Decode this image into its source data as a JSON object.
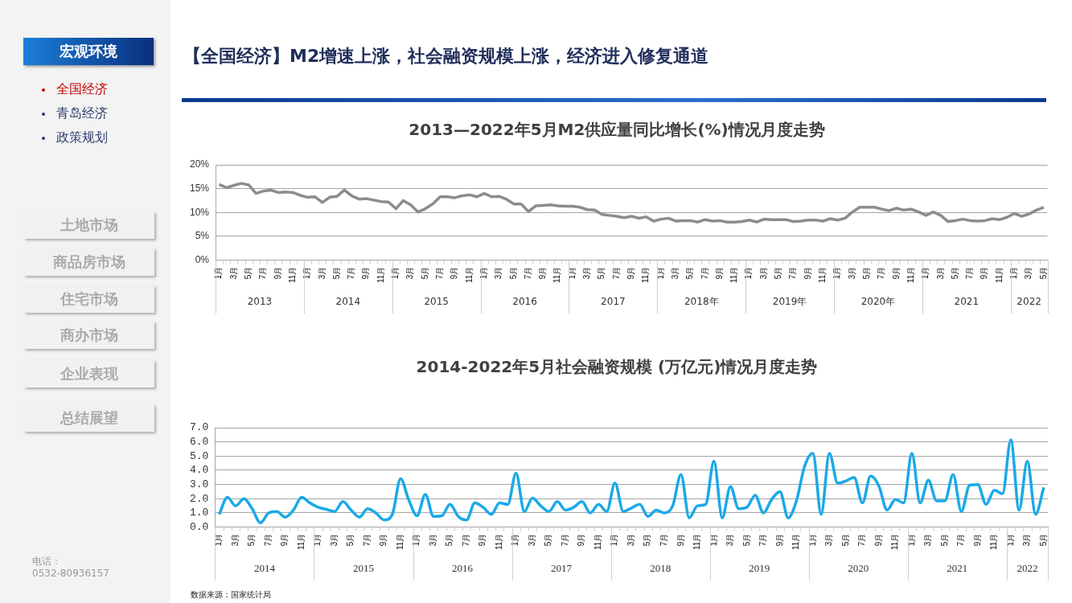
{
  "chart_data": [
    {
      "type": "other",
      "title": "【全国经济】M2增速上涨，社会融资规模上涨，经济进入修复通道",
      "annotations": [
        "宏观环境",
        "全国经济",
        "青岛经济",
        "政策规划",
        "土地市场",
        "商品房市场",
        "住宅市场",
        "商办市场",
        "企业表现",
        "总结展望",
        "电话：",
        "0532-80936157"
      ]
    },
    {
      "type": "line",
      "title": "2013—2022年5月M2供应量同比增长(%)情况月度走势",
      "categories": [
        "1月",
        null,
        "3月",
        null,
        "5月",
        null,
        "7月",
        null,
        "9月",
        null,
        "11月",
        null,
        "1月",
        null,
        "3月",
        null,
        "5月",
        null,
        "7月",
        null,
        "9月",
        null,
        "11月",
        null,
        "1月",
        null,
        "3月",
        null,
        "5月",
        null,
        "7月",
        null,
        "9月",
        null,
        "11月",
        null,
        "1月",
        null,
        "3月",
        null,
        "5月",
        null,
        "7月",
        null,
        "9月",
        null,
        "11月",
        null,
        "1月",
        null,
        "3月",
        null,
        "5月",
        null,
        "7月",
        null,
        "9月",
        null,
        "11月",
        null,
        "1月",
        null,
        "3月",
        null,
        "5月",
        null,
        "7月",
        null,
        "9月",
        null,
        "11月",
        null,
        "1月",
        null,
        "3月",
        null,
        "5月",
        null,
        "7月",
        null,
        "9月",
        null,
        "11月",
        null,
        "1月",
        null,
        "3月",
        null,
        "5月",
        null,
        "7月",
        null,
        "9月",
        null,
        "11月",
        null,
        "1月",
        null,
        "3月",
        null,
        "5月",
        null,
        "7月",
        null,
        "9月",
        null,
        "11月",
        null,
        "1月",
        null,
        "3月",
        null,
        "5月"
      ],
      "series": [
        {
          "color": "#8c8c8c",
          "values": [
            15.9,
            15.2,
            15.7,
            16.1,
            15.8,
            14.0,
            14.5,
            14.7,
            14.2,
            14.3,
            14.2,
            13.6,
            13.2,
            13.3,
            12.1,
            13.2,
            13.4,
            14.7,
            13.5,
            12.8,
            12.9,
            12.6,
            12.3,
            12.2,
            10.8,
            12.5,
            11.6,
            10.1,
            10.8,
            11.8,
            13.3,
            13.3,
            13.1,
            13.5,
            13.7,
            13.3,
            14.0,
            13.3,
            13.4,
            12.8,
            11.8,
            11.8,
            10.2,
            11.4,
            11.5,
            11.6,
            11.4,
            11.3,
            11.3,
            11.1,
            10.6,
            10.5,
            9.6,
            9.4,
            9.2,
            8.9,
            9.2,
            8.8,
            9.1,
            8.2,
            8.6,
            8.8,
            8.2,
            8.3,
            8.3,
            8.0,
            8.5,
            8.2,
            8.3,
            8.0,
            8.0,
            8.1,
            8.4,
            8.0,
            8.6,
            8.5,
            8.5,
            8.5,
            8.1,
            8.2,
            8.4,
            8.4,
            8.2,
            8.7,
            8.4,
            8.8,
            10.1,
            11.1,
            11.1,
            11.1,
            10.7,
            10.4,
            10.9,
            10.5,
            10.7,
            10.1,
            9.4,
            10.1,
            9.4,
            8.1,
            8.3,
            8.6,
            8.3,
            8.2,
            8.3,
            8.7,
            8.5,
            9.0,
            9.8,
            9.2,
            9.7,
            10.5,
            11.1
          ]
        }
      ],
      "ylim": [
        0,
        20
      ],
      "yticks": [
        {
          "value": 0,
          "label": "0%"
        },
        {
          "value": 5,
          "label": "5%"
        },
        {
          "value": 10,
          "label": "10%"
        },
        {
          "value": 15,
          "label": "15%"
        },
        {
          "value": 20,
          "label": "20%"
        }
      ],
      "grid": "y",
      "legend": false,
      "marker": "none",
      "line_style": "solid",
      "annotations": [
        "2013",
        "2014",
        "2015",
        "2016",
        "2017",
        "2018年",
        "2019年",
        "2020年",
        "2021",
        "2022"
      ]
    },
    {
      "type": "line",
      "title": "2014-2022年5月社会融资规模 (万亿元)情况月度走势",
      "categories": [
        "1月",
        null,
        "3月",
        null,
        "5月",
        null,
        "7月",
        null,
        "9月",
        null,
        "11月",
        null,
        "1月",
        null,
        "3月",
        null,
        "5月",
        null,
        "7月",
        null,
        "9月",
        null,
        "11月",
        null,
        "1月",
        null,
        "3月",
        null,
        "5月",
        null,
        "7月",
        null,
        "9月",
        null,
        "11月",
        null,
        "1月",
        null,
        "3月",
        null,
        "5月",
        null,
        "7月",
        null,
        "9月",
        null,
        "11月",
        null,
        "1月",
        null,
        "3月",
        null,
        "5月",
        null,
        "7月",
        null,
        "9月",
        null,
        "11月",
        null,
        "1月",
        null,
        "3月",
        null,
        "5月",
        null,
        "7月",
        null,
        "9月",
        null,
        "11月",
        null,
        "1月",
        null,
        "3月",
        null,
        "5月",
        null,
        "7月",
        null,
        "9月",
        null,
        "11月",
        null,
        "1月",
        null,
        "3月",
        null,
        "5月",
        null,
        "7月",
        null,
        "9月",
        null,
        "11月",
        null,
        "1月",
        null,
        "3月",
        null,
        "5月"
      ],
      "series": [
        {
          "color": "#1aa9e8",
          "values": [
            0.9,
            2.1,
            1.5,
            2.0,
            1.3,
            0.3,
            1.0,
            1.1,
            0.7,
            1.2,
            2.1,
            1.7,
            1.4,
            1.25,
            1.1,
            1.8,
            1.2,
            0.7,
            1.3,
            1.0,
            0.5,
            0.9,
            3.4,
            1.9,
            0.8,
            2.3,
            0.75,
            0.8,
            1.6,
            0.75,
            0.5,
            1.7,
            1.4,
            0.9,
            1.7,
            1.6,
            3.8,
            1.1,
            2.05,
            1.5,
            1.1,
            1.8,
            1.2,
            1.4,
            1.8,
            1.0,
            1.6,
            1.1,
            3.1,
            1.1,
            1.35,
            1.6,
            0.75,
            1.2,
            1.0,
            1.5,
            3.7,
            0.65,
            1.5,
            1.6,
            4.65,
            0.65,
            2.85,
            1.3,
            1.4,
            2.25,
            1.0,
            1.95,
            2.5,
            0.65,
            1.85,
            4.3,
            5.2,
            0.9,
            5.2,
            3.1,
            3.25,
            3.5,
            1.7,
            3.6,
            2.9,
            1.2,
            1.95,
            1.7,
            5.2,
            1.7,
            3.3,
            1.85,
            1.85,
            3.7,
            1.1,
            2.95,
            3.0,
            1.6,
            2.6,
            2.35,
            6.15,
            1.2,
            4.65,
            0.9,
            2.8
          ]
        }
      ],
      "ylim": [
        0,
        7
      ],
      "yticks": [
        {
          "value": 0,
          "label": "0.0"
        },
        {
          "value": 1,
          "label": "1.0"
        },
        {
          "value": 2,
          "label": "2.0"
        },
        {
          "value": 3,
          "label": "3.0"
        },
        {
          "value": 4,
          "label": "4.0"
        },
        {
          "value": 5,
          "label": "5.0"
        },
        {
          "value": 6,
          "label": "6.0"
        },
        {
          "value": 7,
          "label": "7.0"
        }
      ],
      "grid": "y",
      "legend": false,
      "marker": "none",
      "line_style": "solid",
      "annotations": [
        "2014",
        "2015",
        "2016",
        "2017",
        "2018",
        "2019",
        "2020",
        "2021",
        "2022",
        "数据来源：国家统计局"
      ]
    }
  ]
}
